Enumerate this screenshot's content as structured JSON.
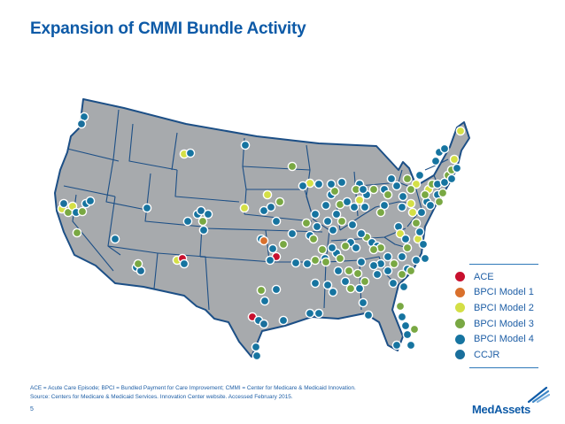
{
  "title": "Expansion of CMMI Bundle Activity",
  "legend": {
    "items": [
      {
        "label": "ACE",
        "color": "#c8102e"
      },
      {
        "label": "BPCI Model 1",
        "color": "#d9702c"
      },
      {
        "label": "BPCI Model 2",
        "color": "#d4df46"
      },
      {
        "label": "BPCI Model 3",
        "color": "#79a843"
      },
      {
        "label": "BPCI Model 4",
        "color": "#1674a0"
      },
      {
        "label": "CCJR",
        "color": "#1a6f9c"
      }
    ]
  },
  "footnote": {
    "line1": "ACE = Acute Care Episode; BPCI = Bundled Payment for Care Improvement; CMMI = Center for Medicare & Medicaid Innovation.",
    "line2": "Source: Centers for Medicare & Medicaid Services. Innovation Center website.  Accessed February 2015."
  },
  "page_number": "5",
  "logo": {
    "text": "MedAssets"
  },
  "colors": {
    "title": "#0d5aa7",
    "land": "#a7aaad",
    "state_border": "#1c4f86",
    "dot_outline": "#ffffff"
  }
}
